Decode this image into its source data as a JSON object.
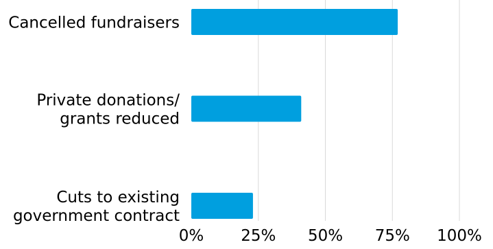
{
  "chart_data": {
    "type": "bar",
    "orientation": "horizontal",
    "categories": [
      [
        "Cancelled fundraisers"
      ],
      [
        "Private donations/",
        "grants reduced"
      ],
      [
        "Cuts to existing",
        "government contract"
      ]
    ],
    "values": [
      77,
      41,
      23
    ],
    "value_unit": "%",
    "xlim": [
      0,
      100
    ],
    "xticks": [
      0,
      25,
      50,
      75,
      100
    ],
    "xtick_labels": [
      "0%",
      "25%",
      "50%",
      "75%",
      "100%"
    ],
    "grid": true,
    "legend": false,
    "title": "",
    "xlabel": "",
    "ylabel": "",
    "colors": {
      "bar": "#009fdf",
      "grid": "#d9d9d9"
    }
  }
}
